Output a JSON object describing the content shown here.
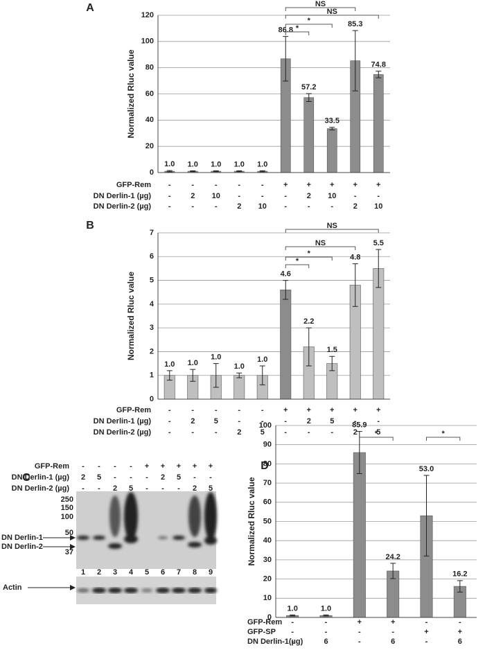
{
  "chart_data": [
    {
      "type": "bar",
      "panel": "A",
      "y_label": "Normalized Rluc value",
      "values": [
        1.0,
        1.0,
        1.0,
        1.0,
        1.0,
        86.8,
        57.2,
        33.5,
        85.3,
        74.8
      ],
      "value_labels": [
        "1.0",
        "1.0",
        "1.0",
        "1.0",
        "1.0",
        "86.8",
        "57.2",
        "33.5",
        "85.3",
        "74.8"
      ],
      "errors": [
        0.5,
        0.3,
        0.3,
        0.3,
        0.4,
        17,
        3,
        1,
        23,
        2.5
      ],
      "colors": [
        "#8c8c8c",
        "#8c8c8c",
        "#8c8c8c",
        "#8c8c8c",
        "#8c8c8c",
        "#8c8c8c",
        "#8c8c8c",
        "#8c8c8c",
        "#8c8c8c",
        "#8c8c8c"
      ],
      "ylim": [
        0,
        120
      ],
      "yticks": [
        0,
        20,
        40,
        60,
        80,
        100,
        120
      ],
      "grid": true,
      "conditions": [
        {
          "name": "GFP-Rem",
          "values": [
            "-",
            "-",
            "-",
            "-",
            "-",
            "+",
            "+",
            "+",
            "+",
            "+"
          ]
        },
        {
          "name": "DN Derlin-1 (µg)",
          "values": [
            "-",
            "2",
            "10",
            "-",
            "-",
            "-",
            "2",
            "10",
            "-",
            "-"
          ]
        },
        {
          "name": "DN Derlin-2 (µg)",
          "values": [
            "-",
            "-",
            "-",
            "2",
            "10",
            "-",
            "-",
            "-",
            "2",
            "10"
          ]
        }
      ],
      "comparisons": [
        {
          "label": "NS",
          "from": 5,
          "to": 8
        },
        {
          "label": "NS",
          "from": 5,
          "to": 9
        },
        {
          "label": "*",
          "from": 5,
          "to": 7
        },
        {
          "label": "*",
          "from": 5,
          "to": 6
        }
      ]
    },
    {
      "type": "bar",
      "panel": "B",
      "y_label": "Normalized Rluc value",
      "values": [
        1.0,
        1.0,
        1.0,
        1.0,
        1.0,
        4.6,
        2.2,
        1.5,
        4.8,
        5.5
      ],
      "value_labels": [
        "1.0",
        "1.0",
        "1.0",
        "1.0",
        "1.0",
        "4.6",
        "2.2",
        "1.5",
        "4.8",
        "5.5"
      ],
      "errors": [
        0.2,
        0.25,
        0.5,
        0.1,
        0.4,
        0.4,
        0.8,
        0.3,
        0.9,
        0.8
      ],
      "colors": [
        "#bfbfbf",
        "#bfbfbf",
        "#bfbfbf",
        "#bfbfbf",
        "#bfbfbf",
        "#8c8c8c",
        "#bfbfbf",
        "#bfbfbf",
        "#bfbfbf",
        "#bfbfbf"
      ],
      "ylim": [
        0,
        7
      ],
      "yticks": [
        0,
        1,
        2,
        3,
        4,
        5,
        6,
        7
      ],
      "grid": true,
      "conditions": [
        {
          "name": "GFP-Rem",
          "values": [
            "-",
            "-",
            "-",
            "-",
            "-",
            "+",
            "+",
            "+",
            "+",
            "+"
          ]
        },
        {
          "name": "DN Derlin-1 (µg)",
          "values": [
            "-",
            "2",
            "5",
            "-",
            "-",
            "-",
            "2",
            "5",
            "-",
            "-"
          ]
        },
        {
          "name": "DN Derlin-2 (µg)",
          "values": [
            "-",
            "-",
            "-",
            "2",
            "5",
            "-",
            "-",
            "-",
            "2",
            "5"
          ]
        }
      ],
      "comparisons": [
        {
          "label": "NS",
          "from": 5,
          "to": 9
        },
        {
          "label": "NS",
          "from": 5,
          "to": 8
        },
        {
          "label": "*",
          "from": 5,
          "to": 7
        },
        {
          "label": "*",
          "from": 5,
          "to": 6
        }
      ]
    },
    {
      "type": "bar",
      "panel": "D",
      "y_label": "Normalized Rluc value",
      "values": [
        1.0,
        1.0,
        85.9,
        24.2,
        53.0,
        16.2
      ],
      "value_labels": [
        "1.0",
        "1.0",
        "85.9",
        "24.2",
        "53.0",
        "16.2"
      ],
      "errors": [
        0.3,
        0.3,
        11,
        4,
        21,
        3
      ],
      "colors": [
        "#8c8c8c",
        "#8c8c8c",
        "#8c8c8c",
        "#8c8c8c",
        "#8c8c8c",
        "#8c8c8c"
      ],
      "ylim": [
        0,
        100
      ],
      "yticks": [
        0,
        10,
        20,
        30,
        40,
        50,
        60,
        70,
        80,
        90,
        100
      ],
      "grid": true,
      "conditions": [
        {
          "name": "GFP-Rem",
          "values": [
            "-",
            "-",
            "+",
            "+",
            "-",
            "-"
          ]
        },
        {
          "name": "GFP-SP",
          "values": [
            "-",
            "-",
            "-",
            "-",
            "+",
            "+"
          ]
        },
        {
          "name": "DN Derlin-1(µg)",
          "values": [
            "-",
            "6",
            "-",
            "6",
            "-",
            "6"
          ]
        }
      ],
      "comparisons": [
        {
          "label": "*",
          "from": 2,
          "to": 3
        },
        {
          "label": "*",
          "from": 4,
          "to": 5
        }
      ]
    }
  ],
  "blot": {
    "panel": "C",
    "conditions": [
      {
        "name": "GFP-Rem",
        "values": [
          "-",
          "-",
          "-",
          "-",
          "+",
          "+",
          "+",
          "+",
          "+"
        ]
      },
      {
        "name": "DN Derlin-1 (µg)",
        "values": [
          "2",
          "5",
          "-",
          "-",
          "-",
          "2",
          "5",
          "-",
          "-"
        ]
      },
      {
        "name": "DN Derlin-2 (µg)",
        "values": [
          "-",
          "-",
          "2",
          "5",
          "-",
          "-",
          "-",
          "2",
          "5"
        ]
      }
    ],
    "markers": [
      "250",
      "150",
      "100",
      "50",
      "37"
    ],
    "bands": [
      "DN Derlin-1",
      "DN Derlin-2"
    ],
    "lanes": [
      "1",
      "2",
      "3",
      "4",
      "5",
      "6",
      "7",
      "8",
      "9"
    ],
    "loading_control": "Actin"
  }
}
